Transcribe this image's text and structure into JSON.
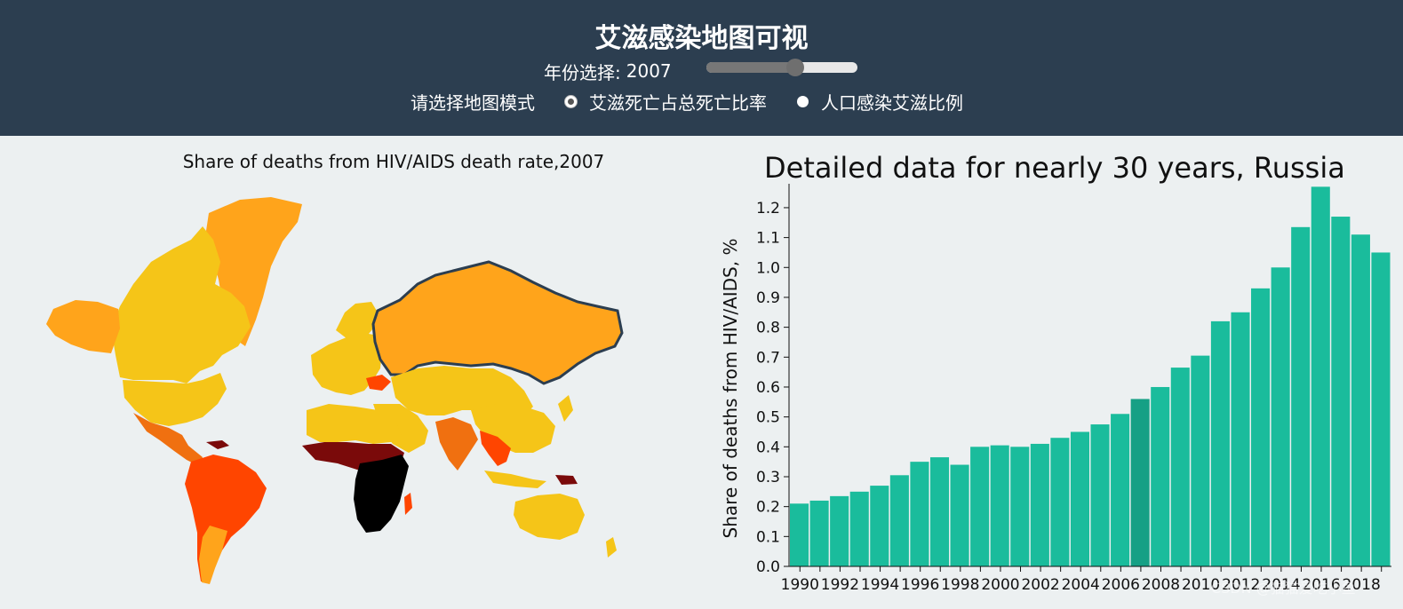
{
  "header": {
    "title": "艾滋感染地图可视",
    "year_label": "年份选择:",
    "year_value": "2007",
    "year_slider": {
      "min": 1990,
      "max": 2019,
      "value": 2007
    },
    "mode_label": "请选择地图模式",
    "modes": [
      {
        "label": "艾滋死亡占总死亡比率",
        "checked": true
      },
      {
        "label": "人口感染艾滋比例",
        "checked": false
      }
    ]
  },
  "map": {
    "title": "Share of deaths from HIV/AIDS death rate,2007",
    "highlighted_country": "Russia",
    "colors": {
      "low": "#f5c518",
      "mid": "#ffa41b",
      "orange": "#f07010",
      "high": "#ff4500",
      "severe": "#7a0a0a",
      "extreme": "#000000",
      "ocean": "#ecf0f1",
      "border": "#2c3e50"
    }
  },
  "chart_data": {
    "type": "bar",
    "title": "Detailed data for nearly 30 years, Russia",
    "ylabel": "Share of deaths from HIV/AIDS, %",
    "xlabel": "",
    "ylim": [
      0,
      1.28
    ],
    "yticks": [
      "0.0",
      "0.1",
      "0.2",
      "0.3",
      "0.4",
      "0.5",
      "0.6",
      "0.7",
      "0.8",
      "0.9",
      "1.0",
      "1.1",
      "1.2"
    ],
    "categories": [
      "1990",
      "1991",
      "1992",
      "1993",
      "1994",
      "1995",
      "1996",
      "1997",
      "1998",
      "1999",
      "2000",
      "2001",
      "2002",
      "2003",
      "2004",
      "2005",
      "2006",
      "2007",
      "2008",
      "2009",
      "2010",
      "2011",
      "2012",
      "2013",
      "2014",
      "2015",
      "2016",
      "2017",
      "2018",
      "2019"
    ],
    "x_tick_labels": [
      "1990",
      "1992",
      "1994",
      "1996",
      "1998",
      "2000",
      "2002",
      "2004",
      "2006",
      "2008",
      "2010",
      "2012",
      "2014",
      "2016",
      "2018"
    ],
    "values": [
      0.21,
      0.22,
      0.235,
      0.25,
      0.27,
      0.305,
      0.35,
      0.365,
      0.34,
      0.4,
      0.405,
      0.4,
      0.41,
      0.43,
      0.45,
      0.475,
      0.51,
      0.56,
      0.6,
      0.665,
      0.705,
      0.82,
      0.85,
      0.93,
      1.0,
      1.135,
      1.27,
      1.17,
      1.11,
      1.05
    ],
    "highlight": "2007",
    "bar_color": "#1abc9c",
    "highlight_color": "#16a085"
  },
  "watermark": "CSDN @猫猫爱吃小鱼"
}
